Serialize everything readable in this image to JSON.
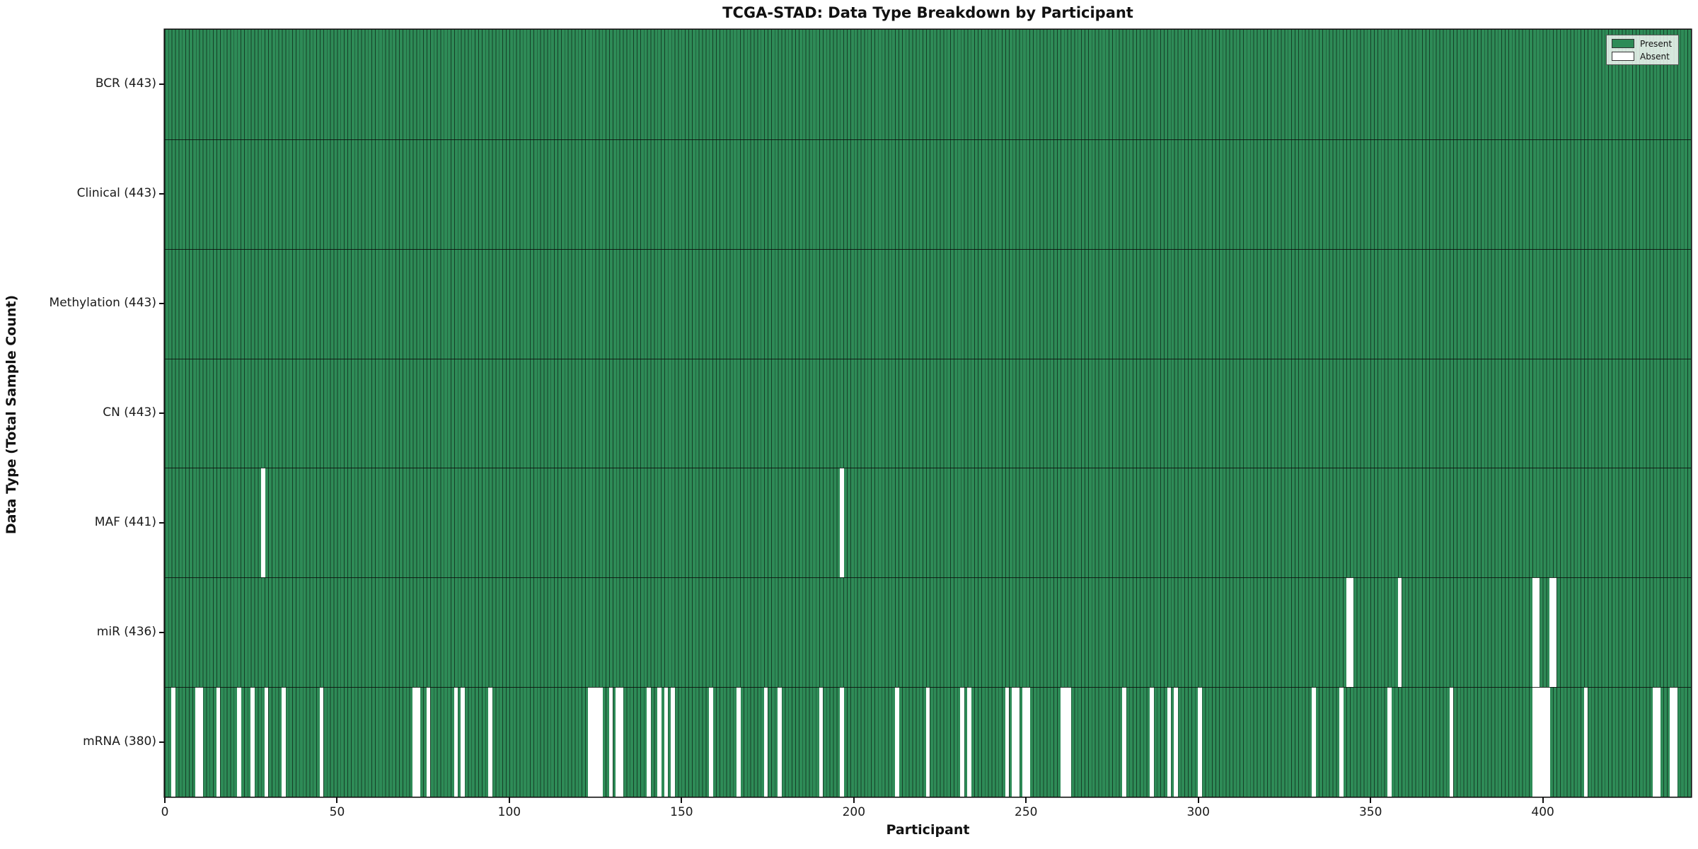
{
  "chart_data": {
    "type": "heatmap",
    "title": "TCGA-STAD: Data Type Breakdown by Participant",
    "xlabel": "Participant",
    "ylabel": "Data Type (Total Sample Count)",
    "x_ticks": [
      0,
      50,
      100,
      150,
      200,
      250,
      300,
      350,
      400
    ],
    "x_range": [
      0,
      443
    ],
    "n_participants": 443,
    "grid": false,
    "legend": {
      "position": "upper right",
      "entries": [
        {
          "label": "Present",
          "color": "#2e8b57"
        },
        {
          "label": "Absent",
          "color": "#ffffff"
        }
      ]
    },
    "colors": {
      "present": "#2e8b57",
      "absent": "#ffffff",
      "bar_edge": "rgba(0,0,0,0.55)",
      "plot_border": "#111111",
      "row_separator": "rgba(10,15,12,0.85)"
    },
    "rows": [
      {
        "label": "BCR (443)",
        "name": "BCR",
        "total": 443,
        "absent": []
      },
      {
        "label": "Clinical (443)",
        "name": "Clinical",
        "total": 443,
        "absent": []
      },
      {
        "label": "Methylation (443)",
        "name": "Methylation",
        "total": 443,
        "absent": []
      },
      {
        "label": "CN (443)",
        "name": "CN",
        "total": 443,
        "absent": []
      },
      {
        "label": "MAF (441)",
        "name": "MAF",
        "total": 441,
        "absent": [
          28,
          196
        ]
      },
      {
        "label": "miR (436)",
        "name": "miR",
        "total": 436,
        "absent": [
          343,
          344,
          358,
          397,
          398,
          402,
          403
        ]
      },
      {
        "label": "mRNA (380)",
        "name": "mRNA",
        "total": 380,
        "absent": [
          2,
          9,
          10,
          15,
          21,
          25,
          29,
          34,
          45,
          72,
          73,
          76,
          84,
          86,
          94,
          123,
          124,
          125,
          126,
          129,
          131,
          132,
          140,
          143,
          145,
          147,
          158,
          166,
          174,
          178,
          190,
          196,
          212,
          221,
          231,
          233,
          244,
          246,
          247,
          249,
          250,
          260,
          261,
          262,
          278,
          286,
          291,
          293,
          300,
          333,
          341,
          355,
          373,
          397,
          398,
          399,
          400,
          401,
          412,
          432,
          433,
          437,
          438
        ]
      }
    ]
  }
}
